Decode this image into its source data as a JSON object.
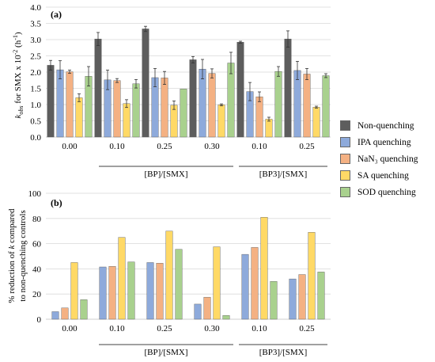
{
  "colors": {
    "non_quenching": "#5d5d5d",
    "ipa": "#8eaadb",
    "nan3": "#f4b183",
    "sa": "#ffd966",
    "sod": "#a9d18e"
  },
  "legend": [
    {
      "label": "Non-quenching",
      "color": "#5d5d5d"
    },
    {
      "label": "IPA quenching",
      "color": "#8eaadb"
    },
    {
      "label": "NaN₃ quenching",
      "color": "#f4b183"
    },
    {
      "label": "SA quenching",
      "color": "#ffd966"
    },
    {
      "label": "SOD quenching",
      "color": "#a9d18e"
    }
  ],
  "chart_data": [
    {
      "type": "bar",
      "panel_label": "(a)",
      "ylabel_prefix": "k",
      "ylabel_sub": "obs",
      "ylabel_rest": " for SMX x 10",
      "ylabel_sup": "-2",
      "ylabel_unit": " (h",
      "ylabel_unit_sup": "-1",
      "ylabel_close": ")",
      "categories": [
        "0.00",
        "0.10",
        "0.25",
        "0.30",
        "0.10",
        "0.25"
      ],
      "group_labels": [
        "[BP]/[SMX]",
        "[BP3]/[SMX]"
      ],
      "ylim": [
        0,
        4.0
      ],
      "yticks": [
        "0.0",
        "0.5",
        "1.0",
        "1.5",
        "2.0",
        "2.5",
        "3.0",
        "3.5",
        "4.0"
      ],
      "grid": true,
      "series": [
        {
          "name": "Non-quenching",
          "values": [
            2.21,
            3.02,
            3.33,
            2.38,
            2.92,
            3.02
          ],
          "errors": [
            0.15,
            0.2,
            0.08,
            0.1,
            0.03,
            0.25
          ]
        },
        {
          "name": "IPA quenching",
          "values": [
            2.07,
            1.76,
            1.83,
            2.09,
            1.4,
            2.05
          ],
          "errors": [
            0.28,
            0.3,
            0.28,
            0.3,
            0.28,
            0.28
          ]
        },
        {
          "name": "NaN₃ quenching",
          "values": [
            2.01,
            1.74,
            1.82,
            1.96,
            1.24,
            1.94
          ],
          "errors": [
            0.05,
            0.06,
            0.2,
            0.14,
            0.15,
            0.17
          ]
        },
        {
          "name": "SA quenching",
          "values": [
            1.21,
            1.03,
            0.98,
            0.99,
            0.55,
            0.92
          ],
          "errors": [
            0.12,
            0.12,
            0.13,
            0.03,
            0.06,
            0.03
          ]
        },
        {
          "name": "SOD quenching",
          "values": [
            1.87,
            1.64,
            1.48,
            2.28,
            2.02,
            1.89
          ],
          "errors": [
            0.3,
            0.13,
            0.0,
            0.33,
            0.15,
            0.06
          ]
        }
      ]
    },
    {
      "type": "bar",
      "panel_label": "(b)",
      "ylabel_line1_pre": "% reduction of ",
      "ylabel_line1_k": "k",
      "ylabel_line1_post": " compared",
      "ylabel_line2": "to non-quenching controls",
      "categories": [
        "0.00",
        "0.10",
        "0.25",
        "0.30",
        "0.10",
        "0.25"
      ],
      "group_labels": [
        "[BP]/[SMX]",
        "[BP3]/[SMX]"
      ],
      "ylim": [
        0,
        100
      ],
      "yticks": [
        "0",
        "20",
        "40",
        "60",
        "80",
        "100"
      ],
      "grid": true,
      "series": [
        {
          "name": "IPA quenching",
          "values": [
            6,
            41.5,
            45,
            12,
            51.5,
            32
          ]
        },
        {
          "name": "NaN₃ quenching",
          "values": [
            9,
            42,
            44.5,
            17.5,
            57,
            35.5
          ]
        },
        {
          "name": "SA quenching",
          "values": [
            45,
            65,
            70,
            57.5,
            81,
            69
          ]
        },
        {
          "name": "SOD quenching",
          "values": [
            15.5,
            45.5,
            55.5,
            3,
            30,
            37.5
          ]
        }
      ]
    }
  ]
}
